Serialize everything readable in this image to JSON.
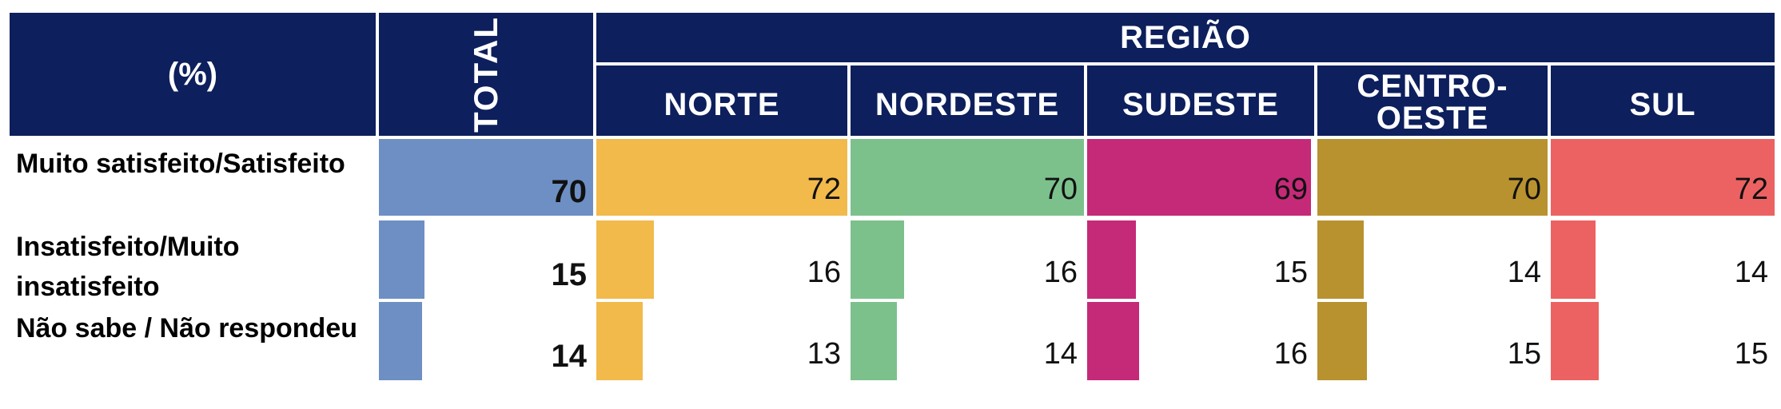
{
  "header": {
    "pct_label": "(%)",
    "total_label": "TOTAL",
    "group_label": "REGIÃO",
    "regions": [
      "NORTE",
      "NORDESTE",
      "SUDESTE",
      "CENTRO-\nOESTE",
      "SUL"
    ]
  },
  "colors": {
    "header_bg": "#0d1f5c",
    "total": "#6d8fc4",
    "norte": "#f2b94b",
    "nordeste": "#7cc18c",
    "sudeste": "#c42a78",
    "centro_oeste": "#b8922f",
    "sul": "#ec6262"
  },
  "chart_data": {
    "type": "table",
    "columns": [
      "TOTAL",
      "NORTE",
      "NORDESTE",
      "SUDESTE",
      "CENTRO-OESTE",
      "SUL"
    ],
    "rows": [
      {
        "label": "Muito satisfeito/Satisfeito",
        "values": [
          70,
          72,
          70,
          69,
          70,
          72
        ]
      },
      {
        "label": "Insatisfeito/Muito insatisfeito",
        "values": [
          15,
          16,
          16,
          15,
          14,
          14
        ]
      },
      {
        "label": "Não sabe / Não respondeu",
        "values": [
          14,
          13,
          14,
          16,
          15,
          15
        ]
      }
    ],
    "scale_max": 70
  }
}
